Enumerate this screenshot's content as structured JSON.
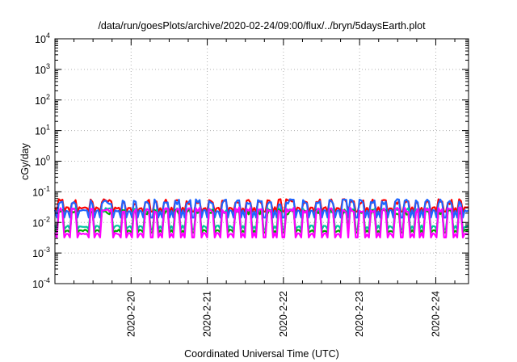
{
  "chart_data": {
    "type": "line",
    "title": "/data/run/goesPlots/archive/2020-02-24/09:00/flux/../bryn/5daysEarth.plot",
    "xlabel": "Coordinated Universal Time (UTC)",
    "ylabel": "cGy/day",
    "yscale": "log",
    "ylim": [
      0.0001,
      10000
    ],
    "xlim": [
      0,
      5.43
    ],
    "grid": true,
    "legend": "none",
    "x_ticks": [
      {
        "x": 1,
        "label": "2020-2-20"
      },
      {
        "x": 2,
        "label": "2020-2-21"
      },
      {
        "x": 3,
        "label": "2020-2-22"
      },
      {
        "x": 4,
        "label": "2020-2-23"
      },
      {
        "x": 5,
        "label": "2020-2-24"
      }
    ],
    "y_ticks": [
      {
        "value": 0.0001,
        "base": "10",
        "exp": "-4"
      },
      {
        "value": 0.001,
        "base": "10",
        "exp": "-3"
      },
      {
        "value": 0.01,
        "base": "10",
        "exp": "-2"
      },
      {
        "value": 0.1,
        "base": "10",
        "exp": "-1"
      },
      {
        "value": 1,
        "base": "10",
        "exp": "0"
      },
      {
        "value": 10,
        "base": "10",
        "exp": "1"
      },
      {
        "value": 100,
        "base": "10",
        "exp": "2"
      },
      {
        "value": 1000,
        "base": "10",
        "exp": "3"
      },
      {
        "value": 10000,
        "base": "10",
        "exp": "4"
      }
    ],
    "series": [
      {
        "color": "#ff0000",
        "base": 0.03,
        "spike_factor": 1.6,
        "dip_factor": 0.75
      },
      {
        "color": "#1e64ff",
        "base": 0.024,
        "spike_factor": 2.0,
        "dip_factor": 0.6
      },
      {
        "color": "#00c8a0",
        "base": 0.0075,
        "spike_factor": 3.3,
        "dip_factor": 0.8
      },
      {
        "color": "#00aa00",
        "base": 0.0055,
        "spike_factor": 4.0,
        "dip_factor": 0.85
      },
      {
        "color": "#ff00ff",
        "base": 0.0043,
        "spike_factor": 6.0,
        "dip_factor": 0.75
      }
    ],
    "spike_times": [
      0.08,
      0.25,
      0.48,
      0.65,
      0.72,
      0.9,
      1.05,
      1.2,
      1.32,
      1.45,
      1.6,
      1.75,
      1.88,
      2.05,
      2.22,
      2.4,
      2.55,
      2.7,
      2.82,
      2.95,
      3.05,
      3.12,
      3.28,
      3.45,
      3.62,
      3.8,
      3.9,
      4.02,
      4.18,
      4.32,
      4.5,
      4.62,
      4.75,
      4.88,
      5.05,
      5.18,
      5.32
    ]
  }
}
